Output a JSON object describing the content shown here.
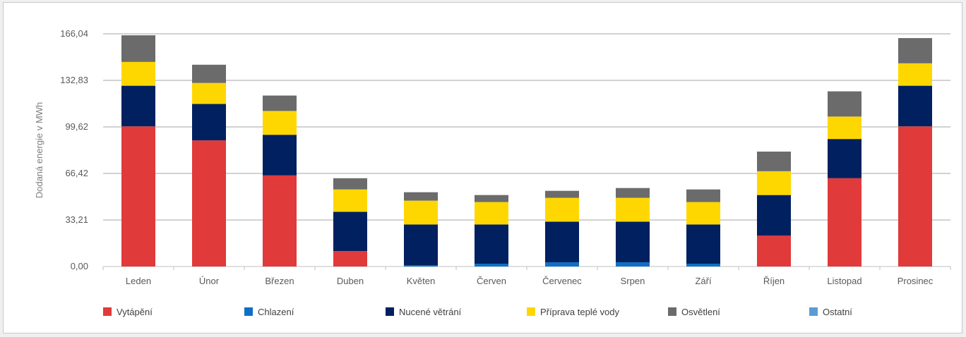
{
  "chart_data": {
    "type": "bar",
    "stacked": true,
    "ylabel": "Dodaná energie v MWh",
    "ylim": [
      0,
      166.04
    ],
    "yticks": [
      "0,00",
      "33,21",
      "66,42",
      "99,62",
      "132,83",
      "166,04"
    ],
    "grid": true,
    "legend_position": "bottom",
    "categories": [
      "Leden",
      "Únor",
      "Březen",
      "Duben",
      "Květen",
      "Červen",
      "Červenec",
      "Srpen",
      "Září",
      "Říjen",
      "Listopad",
      "Prosinec"
    ],
    "series": [
      {
        "name": "Vytápění",
        "color": "#e03a3a",
        "values": [
          100,
          90,
          65,
          11,
          0,
          0,
          0,
          0,
          0,
          22,
          63,
          100
        ]
      },
      {
        "name": "Chlazení",
        "color": "#0f6fc6",
        "values": [
          0,
          0,
          0,
          0,
          1,
          2,
          3,
          3,
          2,
          0,
          0,
          0
        ]
      },
      {
        "name": "Nucené větrání",
        "color": "#002060",
        "values": [
          29,
          26,
          29,
          28,
          29,
          28,
          29,
          29,
          28,
          29,
          28,
          29
        ]
      },
      {
        "name": "Příprava teplé vody",
        "color": "#ffd700",
        "values": [
          17,
          15,
          17,
          16,
          17,
          16,
          17,
          17,
          16,
          17,
          16,
          16
        ]
      },
      {
        "name": "Osvětlení",
        "color": "#6b6b6b",
        "values": [
          19,
          13,
          11,
          8,
          6,
          5,
          5,
          7,
          9,
          14,
          18,
          18
        ]
      },
      {
        "name": "Ostatní",
        "color": "#5b9bd5",
        "values": [
          0,
          0,
          0,
          0,
          0,
          0,
          0,
          0,
          0,
          0,
          0,
          0
        ]
      }
    ]
  }
}
